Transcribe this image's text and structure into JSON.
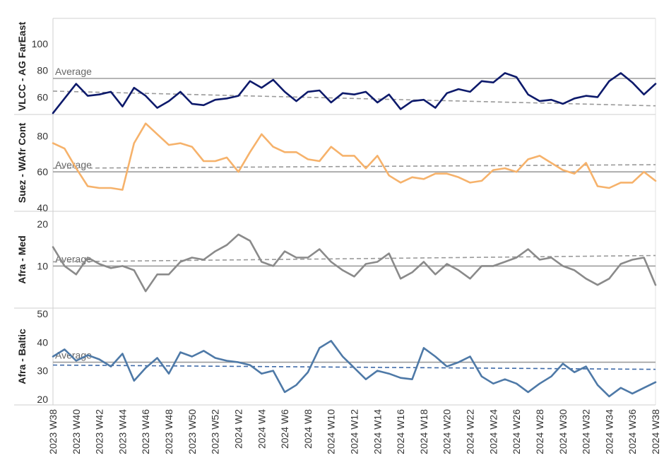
{
  "chart_data": {
    "type": "line",
    "x_labels": [
      "2023 W38",
      "2023 W40",
      "2023 W42",
      "2023 W44",
      "2023 W46",
      "2023 W48",
      "2023 W50",
      "2023 W52",
      "2024 W2",
      "2024 W4",
      "2024 W6",
      "2024 W8",
      "2024 W10",
      "2024 W12",
      "2024 W14",
      "2024 W16",
      "2024 W18",
      "2024 W20",
      "2024 W22",
      "2024 W24",
      "2024 W26",
      "2024 W28",
      "2024 W30",
      "2024 W32",
      "2024 W34",
      "2024 W36",
      "2024 W38"
    ],
    "panels": [
      {
        "name": "VLCC - AG FarEast",
        "color": "#0d1a6b",
        "yticks": [
          60,
          80,
          100
        ],
        "ylim": [
          47,
          119
        ],
        "average": 74,
        "average_label": "Average",
        "trend": [
          64.5,
          53.5
        ],
        "values": [
          48,
          59,
          70,
          61,
          62,
          64,
          53,
          67,
          61,
          52,
          57,
          64,
          55,
          54,
          58,
          59,
          61,
          72,
          67,
          73,
          64,
          57,
          64,
          65,
          56,
          63,
          62,
          64,
          56,
          62,
          51,
          57,
          58,
          52,
          63,
          66,
          64,
          72,
          71,
          78,
          75,
          62,
          57,
          58,
          55,
          59,
          61,
          60,
          72,
          78,
          71,
          62,
          70
        ]
      },
      {
        "name": "Suez - WAfr Cont",
        "color": "#f6b26b",
        "yticks": [
          40,
          60,
          80
        ],
        "ylim": [
          38,
          92
        ],
        "average": 60,
        "average_label": "Average",
        "trend": [
          62,
          64
        ],
        "values": [
          76,
          73,
          62,
          52,
          51,
          51,
          50,
          76,
          87,
          81,
          75,
          76,
          74,
          66,
          66,
          68,
          60,
          71,
          81,
          74,
          71,
          71,
          67,
          66,
          74,
          69,
          69,
          62,
          69,
          58,
          54,
          57,
          56,
          59,
          59,
          57,
          54,
          55,
          61,
          62,
          60,
          67,
          69,
          65,
          61,
          59,
          65,
          52,
          51,
          54,
          54,
          60,
          55
        ]
      },
      {
        "name": "Afra - Med",
        "color": "#8a8a8a",
        "yticks": [
          10,
          20
        ],
        "ylim": [
          0,
          23
        ],
        "average": 10,
        "average_label": "Average",
        "trend": [
          11,
          12.5
        ],
        "values": [
          14.5,
          10,
          8,
          12,
          10.5,
          9.5,
          10,
          9,
          4,
          8,
          8,
          11,
          12,
          11.5,
          13.5,
          15,
          17.5,
          16,
          11,
          10,
          13.5,
          12,
          12,
          14,
          11,
          9,
          7.5,
          10.5,
          11,
          13,
          7,
          8.5,
          11,
          8,
          10.5,
          9,
          7,
          10,
          10,
          11,
          12,
          14,
          11.5,
          12,
          10,
          9,
          7,
          5.5,
          7,
          10.5,
          11.5,
          12,
          5.5
        ]
      },
      {
        "name": "Afra - Baltic",
        "color": "#4e79a7",
        "yticks": [
          20,
          30,
          40,
          50
        ],
        "ylim": [
          18,
          52
        ],
        "average": 33,
        "average_label": "Average",
        "trend": [
          32,
          30.5
        ],
        "values": [
          35,
          37.5,
          33.5,
          35.5,
          34,
          31.5,
          36,
          26.5,
          31,
          34.5,
          29,
          36.5,
          35,
          37,
          34.5,
          33.5,
          33,
          32,
          29,
          30,
          22.5,
          25,
          29.5,
          38,
          40.5,
          35,
          31,
          27,
          30,
          29,
          27.5,
          27,
          38,
          35,
          31.5,
          33,
          35,
          28,
          25.5,
          27,
          25.5,
          22.5,
          25.5,
          28,
          32.5,
          29.5,
          31.5,
          25,
          21,
          24,
          22,
          24,
          26
        ]
      }
    ]
  }
}
